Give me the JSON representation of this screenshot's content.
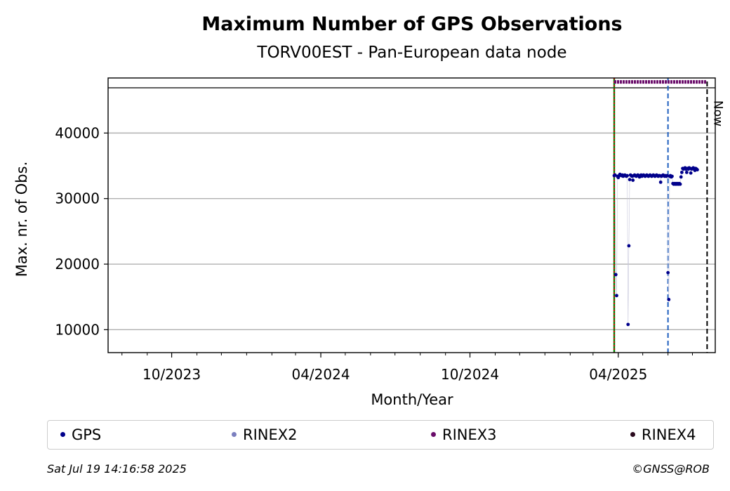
{
  "chart_data": {
    "type": "scatter",
    "title": "Maximum Number of GPS Observations",
    "subtitle": "TORV00EST - Pan-European data node",
    "xlabel": "Month/Year",
    "ylabel": "Max. nr. of Obs.",
    "x_range": [
      "2023-07-15",
      "2025-07-29"
    ],
    "y_range": [
      6500,
      48400
    ],
    "x_tick_labels": [
      "10/2023",
      "04/2024",
      "10/2024",
      "04/2025"
    ],
    "x_ticks": [
      "2023-10-01",
      "2024-04-01",
      "2024-10-01",
      "2025-04-01"
    ],
    "y_ticks": [
      10000,
      20000,
      30000,
      40000
    ],
    "grid": "horizontal",
    "legend_position": "bottom",
    "vertical_lines": [
      {
        "date": "2025-03-27",
        "color": "#008000",
        "style": "solid"
      },
      {
        "date": "2025-03-27",
        "color": "#cc0000",
        "style": "dotted"
      },
      {
        "date": "2025-06-01",
        "color": "#1f5fbf",
        "style": "dashed"
      },
      {
        "date": "2025-07-19",
        "color": "#000000",
        "style": "dashed",
        "label": "Now"
      }
    ],
    "series": [
      {
        "name": "GPS",
        "color": "#00008b",
        "points": [
          [
            "2025-03-27",
            33500
          ],
          [
            "2025-03-28",
            33600
          ],
          [
            "2025-03-29",
            18400
          ],
          [
            "2025-03-30",
            15200
          ],
          [
            "2025-03-31",
            33400
          ],
          [
            "2025-04-01",
            33200
          ],
          [
            "2025-04-02",
            33500
          ],
          [
            "2025-04-03",
            33700
          ],
          [
            "2025-04-04",
            33600
          ],
          [
            "2025-04-05",
            33500
          ],
          [
            "2025-04-06",
            33600
          ],
          [
            "2025-04-07",
            33400
          ],
          [
            "2025-04-08",
            33500
          ],
          [
            "2025-04-09",
            33600
          ],
          [
            "2025-04-10",
            33500
          ],
          [
            "2025-04-11",
            33400
          ],
          [
            "2025-04-12",
            33500
          ],
          [
            "2025-04-13",
            10800
          ],
          [
            "2025-04-14",
            22800
          ],
          [
            "2025-04-15",
            32900
          ],
          [
            "2025-04-16",
            33600
          ],
          [
            "2025-04-17",
            33500
          ],
          [
            "2025-04-18",
            33400
          ],
          [
            "2025-04-19",
            32800
          ],
          [
            "2025-04-20",
            33500
          ],
          [
            "2025-04-21",
            33600
          ],
          [
            "2025-04-22",
            33500
          ],
          [
            "2025-04-23",
            33400
          ],
          [
            "2025-04-24",
            33500
          ],
          [
            "2025-04-25",
            33600
          ],
          [
            "2025-04-26",
            33500
          ],
          [
            "2025-04-27",
            33300
          ],
          [
            "2025-04-28",
            33500
          ],
          [
            "2025-04-29",
            33600
          ],
          [
            "2025-04-30",
            33400
          ],
          [
            "2025-05-01",
            33500
          ],
          [
            "2025-05-02",
            33600
          ],
          [
            "2025-05-03",
            33500
          ],
          [
            "2025-05-04",
            33400
          ],
          [
            "2025-05-05",
            33500
          ],
          [
            "2025-05-06",
            33600
          ],
          [
            "2025-05-07",
            33500
          ],
          [
            "2025-05-08",
            33400
          ],
          [
            "2025-05-09",
            33500
          ],
          [
            "2025-05-10",
            33600
          ],
          [
            "2025-05-11",
            33500
          ],
          [
            "2025-05-12",
            33400
          ],
          [
            "2025-05-13",
            33500
          ],
          [
            "2025-05-14",
            33600
          ],
          [
            "2025-05-15",
            33500
          ],
          [
            "2025-05-16",
            33400
          ],
          [
            "2025-05-17",
            33500
          ],
          [
            "2025-05-18",
            33600
          ],
          [
            "2025-05-19",
            33500
          ],
          [
            "2025-05-20",
            33400
          ],
          [
            "2025-05-21",
            33500
          ],
          [
            "2025-05-22",
            33500
          ],
          [
            "2025-05-23",
            32500
          ],
          [
            "2025-05-24",
            33400
          ],
          [
            "2025-05-25",
            33500
          ],
          [
            "2025-05-26",
            33600
          ],
          [
            "2025-05-27",
            33500
          ],
          [
            "2025-05-28",
            33400
          ],
          [
            "2025-05-29",
            33500
          ],
          [
            "2025-05-30",
            33400
          ],
          [
            "2025-05-31",
            33500
          ],
          [
            "2025-06-01",
            18700
          ],
          [
            "2025-06-02",
            14600
          ],
          [
            "2025-06-03",
            33400
          ],
          [
            "2025-06-04",
            33500
          ],
          [
            "2025-06-05",
            33300
          ],
          [
            "2025-06-06",
            33400
          ],
          [
            "2025-06-07",
            32300
          ],
          [
            "2025-06-08",
            32200
          ],
          [
            "2025-06-09",
            32300
          ],
          [
            "2025-06-10",
            32200
          ],
          [
            "2025-06-11",
            32300
          ],
          [
            "2025-06-12",
            32200
          ],
          [
            "2025-06-13",
            32300
          ],
          [
            "2025-06-14",
            32200
          ],
          [
            "2025-06-15",
            32300
          ],
          [
            "2025-06-16",
            32200
          ],
          [
            "2025-06-17",
            33300
          ],
          [
            "2025-06-18",
            34000
          ],
          [
            "2025-06-19",
            34600
          ],
          [
            "2025-06-20",
            34500
          ],
          [
            "2025-06-21",
            34600
          ],
          [
            "2025-06-22",
            34700
          ],
          [
            "2025-06-23",
            34500
          ],
          [
            "2025-06-24",
            34000
          ],
          [
            "2025-06-25",
            34600
          ],
          [
            "2025-06-26",
            34500
          ],
          [
            "2025-06-27",
            34700
          ],
          [
            "2025-06-28",
            34600
          ],
          [
            "2025-06-29",
            33900
          ],
          [
            "2025-06-30",
            34500
          ],
          [
            "2025-07-01",
            34600
          ],
          [
            "2025-07-02",
            34700
          ],
          [
            "2025-07-03",
            34500
          ],
          [
            "2025-07-04",
            34300
          ],
          [
            "2025-07-05",
            34600
          ],
          [
            "2025-07-06",
            34500
          ],
          [
            "2025-07-07",
            34400
          ]
        ]
      },
      {
        "name": "RINEX2",
        "color": "#7b7fbf",
        "points": []
      },
      {
        "name": "RINEX3",
        "color": "#6a0d6a",
        "band": {
          "from": "2025-03-27",
          "to": "2025-07-18",
          "value": 47800
        }
      },
      {
        "name": "RINEX4",
        "color": "#2a0a1e",
        "points": []
      }
    ]
  },
  "legend": [
    {
      "name": "GPS",
      "color": "#00008b"
    },
    {
      "name": "RINEX2",
      "color": "#7b7fbf"
    },
    {
      "name": "RINEX3",
      "color": "#6a0d6a"
    },
    {
      "name": "RINEX4",
      "color": "#2a0a1e"
    }
  ],
  "footer": {
    "timestamp": "Sat Jul 19 14:16:58 2025",
    "credit": "©GNSS@ROB"
  }
}
